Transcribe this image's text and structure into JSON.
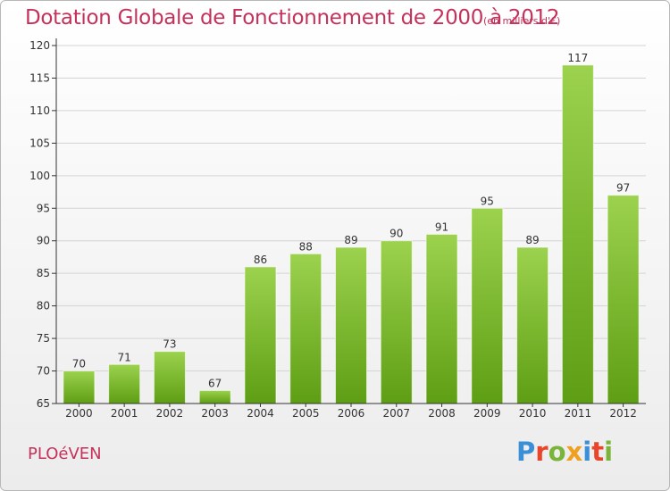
{
  "title": "Dotation Globale de Fonctionnement de 2000 à 2012",
  "subtitle": "(en milliers d'€)",
  "commune": "PLOéVEN",
  "logo": {
    "text": "Proxiti",
    "colors": [
      "#3a8fd6",
      "#e8452c",
      "#7ab53a",
      "#f0a020",
      "#3a8fd6",
      "#e8452c",
      "#7ab53a"
    ]
  },
  "colors": {
    "bar_top": "#9cd24e",
    "bar_bottom": "#5e9e14",
    "grid": "#d4d4d4",
    "axis": "#333333",
    "title": "#c4325c"
  },
  "chart_data": {
    "type": "bar",
    "categories": [
      "2000",
      "2001",
      "2002",
      "2003",
      "2004",
      "2005",
      "2006",
      "2007",
      "2008",
      "2009",
      "2010",
      "2011",
      "2012"
    ],
    "values": [
      70,
      71,
      73,
      67,
      86,
      88,
      89,
      90,
      91,
      95,
      89,
      117,
      97
    ],
    "ylim": [
      65,
      120
    ],
    "yticks": [
      65,
      70,
      75,
      80,
      85,
      90,
      95,
      100,
      105,
      110,
      115,
      120
    ],
    "grid": true
  }
}
